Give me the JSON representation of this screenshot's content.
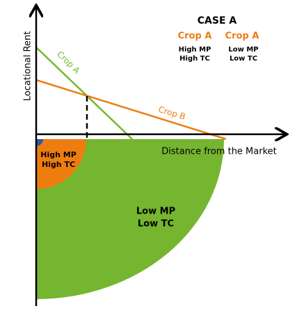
{
  "axes": {
    "y_label": "Locational Rent",
    "x_label": "Distance from the Market"
  },
  "legend": {
    "title": "CASE A",
    "columns": [
      {
        "heading": "Crop A",
        "lines": [
          "High MP",
          "High TC"
        ]
      },
      {
        "heading": "Crop A",
        "lines": [
          "Low MP",
          "Low TC"
        ]
      }
    ]
  },
  "lines": [
    {
      "label": "Crop A"
    },
    {
      "label": "Crop B"
    }
  ],
  "zones": [
    {
      "lines": [
        "High MP",
        "High TC"
      ]
    },
    {
      "lines": [
        "Low MP",
        "Low TC"
      ]
    }
  ]
}
